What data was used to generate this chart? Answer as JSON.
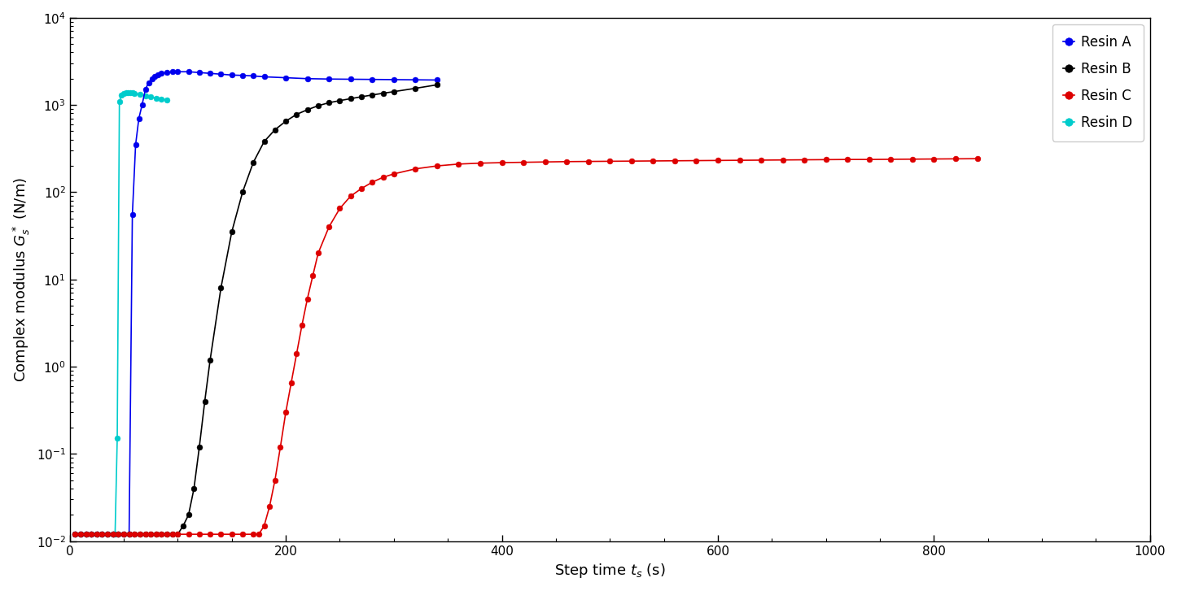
{
  "title": "",
  "xlabel": "Step time $t_s$ (s)",
  "ylabel": "Complex modulus $G^*_s$ (N/m)",
  "xlim": [
    0,
    1000
  ],
  "ylim_log": [
    -2,
    4
  ],
  "legend_labels": [
    "Resin A",
    "Resin B",
    "Resin C",
    "Resin D"
  ],
  "colors": [
    "#0000EE",
    "#000000",
    "#DD0000",
    "#00CCCC"
  ],
  "resin_A": {
    "t": [
      5,
      10,
      15,
      20,
      25,
      30,
      35,
      40,
      45,
      50,
      55,
      58,
      61,
      64,
      67,
      70,
      73,
      76,
      79,
      82,
      85,
      90,
      95,
      100,
      110,
      120,
      130,
      140,
      150,
      160,
      170,
      180,
      200,
      220,
      240,
      260,
      280,
      300,
      320,
      340
    ],
    "G": [
      0.012,
      0.012,
      0.012,
      0.012,
      0.012,
      0.012,
      0.012,
      0.012,
      0.012,
      0.012,
      0.012,
      55,
      350,
      700,
      1000,
      1500,
      1800,
      2000,
      2100,
      2200,
      2300,
      2350,
      2400,
      2400,
      2400,
      2350,
      2300,
      2250,
      2200,
      2180,
      2150,
      2100,
      2050,
      2000,
      1980,
      1970,
      1960,
      1950,
      1940,
      1930
    ]
  },
  "resin_B": {
    "t": [
      5,
      10,
      15,
      20,
      25,
      30,
      35,
      40,
      45,
      50,
      55,
      60,
      65,
      70,
      75,
      80,
      85,
      90,
      95,
      100,
      105,
      110,
      115,
      120,
      125,
      130,
      140,
      150,
      160,
      170,
      180,
      190,
      200,
      210,
      220,
      230,
      240,
      250,
      260,
      270,
      280,
      290,
      300,
      320,
      340
    ],
    "G": [
      0.012,
      0.012,
      0.012,
      0.012,
      0.012,
      0.012,
      0.012,
      0.012,
      0.012,
      0.012,
      0.012,
      0.012,
      0.012,
      0.012,
      0.012,
      0.012,
      0.012,
      0.012,
      0.012,
      0.012,
      0.015,
      0.02,
      0.04,
      0.12,
      0.4,
      1.2,
      8,
      35,
      100,
      220,
      380,
      520,
      650,
      780,
      880,
      980,
      1060,
      1120,
      1180,
      1240,
      1300,
      1360,
      1420,
      1550,
      1700
    ]
  },
  "resin_C": {
    "t": [
      5,
      10,
      15,
      20,
      25,
      30,
      35,
      40,
      45,
      50,
      55,
      60,
      65,
      70,
      75,
      80,
      85,
      90,
      95,
      100,
      110,
      120,
      130,
      140,
      150,
      160,
      170,
      175,
      180,
      185,
      190,
      195,
      200,
      205,
      210,
      215,
      220,
      225,
      230,
      240,
      250,
      260,
      270,
      280,
      290,
      300,
      320,
      340,
      360,
      380,
      400,
      420,
      440,
      460,
      480,
      500,
      520,
      540,
      560,
      580,
      600,
      620,
      640,
      660,
      680,
      700,
      720,
      740,
      760,
      780,
      800,
      820,
      840
    ],
    "G": [
      0.012,
      0.012,
      0.012,
      0.012,
      0.012,
      0.012,
      0.012,
      0.012,
      0.012,
      0.012,
      0.012,
      0.012,
      0.012,
      0.012,
      0.012,
      0.012,
      0.012,
      0.012,
      0.012,
      0.012,
      0.012,
      0.012,
      0.012,
      0.012,
      0.012,
      0.012,
      0.012,
      0.012,
      0.015,
      0.025,
      0.05,
      0.12,
      0.3,
      0.65,
      1.4,
      3.0,
      6.0,
      11,
      20,
      40,
      65,
      90,
      110,
      130,
      148,
      162,
      185,
      200,
      210,
      215,
      218,
      220,
      222,
      224,
      225,
      226,
      227,
      228,
      229,
      230,
      231,
      232,
      233,
      234,
      235,
      236,
      237,
      237,
      238,
      239,
      240,
      241,
      242
    ]
  },
  "resin_D": {
    "t": [
      5,
      10,
      15,
      20,
      25,
      30,
      35,
      40,
      42,
      44,
      46,
      48,
      50,
      52,
      54,
      56,
      58,
      60,
      65,
      70,
      75,
      80,
      85,
      90
    ],
    "G": [
      0.012,
      0.012,
      0.012,
      0.012,
      0.012,
      0.012,
      0.012,
      0.012,
      0.012,
      0.15,
      1100,
      1300,
      1350,
      1380,
      1390,
      1380,
      1370,
      1350,
      1320,
      1280,
      1240,
      1200,
      1170,
      1140
    ]
  },
  "markersize": 5,
  "linewidth": 1.2,
  "background_color": "#ffffff"
}
